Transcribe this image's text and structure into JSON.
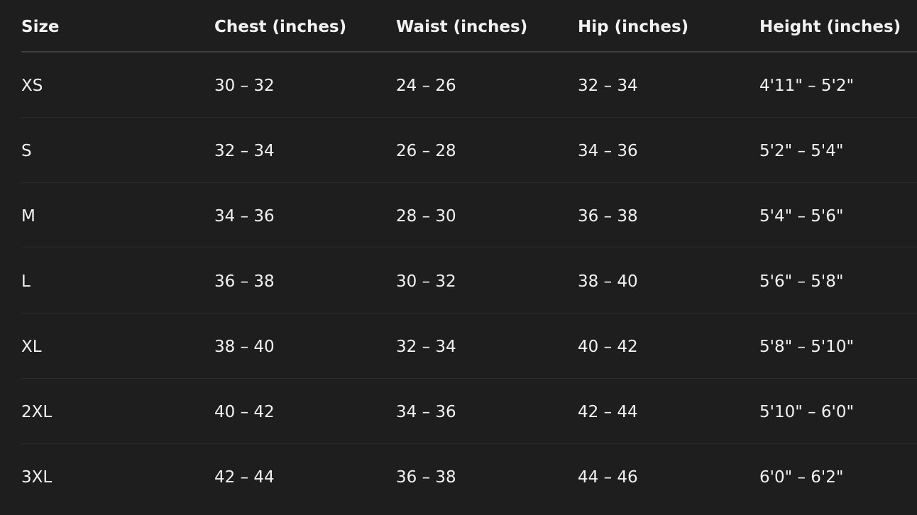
{
  "table": {
    "headers": [
      "Size",
      "Chest (inches)",
      "Waist (inches)",
      "Hip (inches)",
      "Height (inches)"
    ],
    "rows": [
      [
        "XS",
        "30 – 32",
        "24 – 26",
        "32 – 34",
        "4'11\" – 5'2\""
      ],
      [
        "S",
        "32 – 34",
        "26 – 28",
        "34 – 36",
        "5'2\" – 5'4\""
      ],
      [
        "M",
        "34 – 36",
        "28 – 30",
        "36 – 38",
        "5'4\" – 5'6\""
      ],
      [
        "L",
        "36 – 38",
        "30 – 32",
        "38 – 40",
        "5'6\" – 5'8\""
      ],
      [
        "XL",
        "38 – 40",
        "32 – 34",
        "40 – 42",
        "5'8\" – 5'10\""
      ],
      [
        "2XL",
        "40 – 42",
        "34 – 36",
        "42 – 44",
        "5'10\" – 6'0\""
      ],
      [
        "3XL",
        "42 – 44",
        "36 – 38",
        "44 – 46",
        "6'0\" – 6'2\""
      ]
    ]
  }
}
